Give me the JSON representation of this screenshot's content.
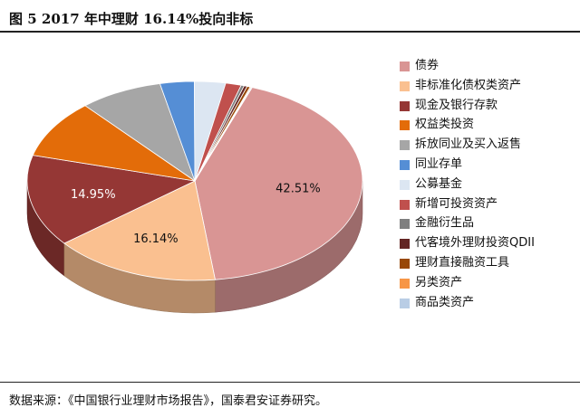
{
  "title": "图  5 2017 年中理财 16.14%投向非标",
  "source": "数据来源：《中国银行业理财市场报告》，国泰君安证券研究。",
  "chart_data": {
    "type": "pie",
    "style": "3d",
    "legend_position": "right",
    "slices": [
      {
        "label": "债券",
        "value": 42.51,
        "data_label": "42.51%",
        "color": "#d99594"
      },
      {
        "label": "非标准化债权类资产",
        "value": 16.14,
        "data_label": "16.14%",
        "color": "#fac090"
      },
      {
        "label": "现金及银行存款",
        "value": 14.95,
        "data_label": "14.95%",
        "color": "#953735"
      },
      {
        "label": "权益类投资",
        "value": 9.5,
        "data_label": "",
        "color": "#e36c09"
      },
      {
        "label": "拆放同业及买入返售",
        "value": 8.0,
        "data_label": "",
        "color": "#a6a6a6"
      },
      {
        "label": "同业存单",
        "value": 3.3,
        "data_label": "",
        "color": "#558ed5"
      },
      {
        "label": "公募基金",
        "value": 3.0,
        "data_label": "",
        "color": "#dce6f2"
      },
      {
        "label": "新增可投资资产",
        "value": 1.5,
        "data_label": "",
        "color": "#c0504d"
      },
      {
        "label": "金融衍生品",
        "value": 0.3,
        "data_label": "",
        "color": "#7f7f7f"
      },
      {
        "label": "代客境外理财投资QDII",
        "value": 0.3,
        "data_label": "",
        "color": "#632523"
      },
      {
        "label": "理财直接融资工具",
        "value": 0.3,
        "data_label": "",
        "color": "#984807"
      },
      {
        "label": "另类资产",
        "value": 0.1,
        "data_label": "",
        "color": "#f79646"
      },
      {
        "label": "商品类资产",
        "value": 0.1,
        "data_label": "",
        "color": "#b9cde5"
      }
    ]
  }
}
